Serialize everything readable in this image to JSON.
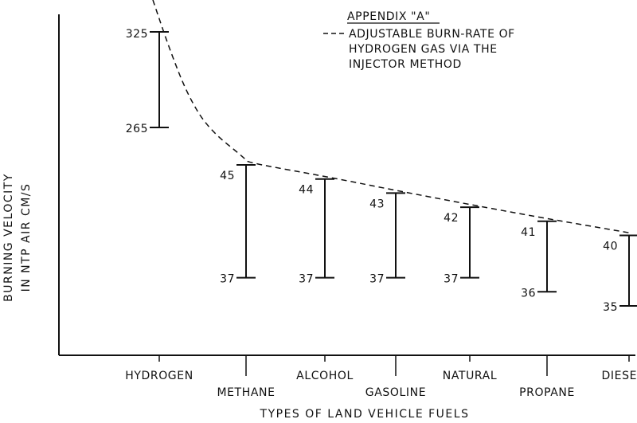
{
  "chart_data": {
    "type": "range-bar",
    "title": "APPENDIX \"A\"",
    "annotation_lines": [
      "ADJUSTABLE BURN-RATE OF",
      "HYDROGEN GAS VIA THE",
      "INJECTOR METHOD"
    ],
    "xlabel": "TYPES OF LAND VEHICLE FUELS",
    "ylabel_lines": [
      "BURNING VELOCITY",
      "IN NTP AIR CM/S"
    ],
    "categories": [
      "HYDROGEN",
      "METHANE",
      "ALCOHOL",
      "GASOLINE",
      "NATURAL",
      "PROPANE",
      "DIESEL"
    ],
    "series": [
      {
        "low": [
          265,
          37,
          37,
          37,
          37,
          36,
          35
        ],
        "high": [
          325,
          45,
          44,
          43,
          42,
          41,
          40
        ],
        "low_labels": [
          "265",
          "37",
          "37",
          "37",
          "37",
          "36",
          "35"
        ],
        "high_labels": [
          "325",
          "45",
          "44",
          "43",
          "42",
          "41",
          "40"
        ]
      }
    ],
    "grid": false,
    "curve_style": "dashed"
  }
}
